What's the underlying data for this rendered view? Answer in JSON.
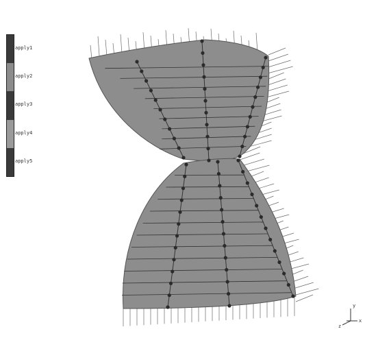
{
  "legend": {
    "items": [
      {
        "label": "apply1",
        "color": "#3a3a3a"
      },
      {
        "label": "apply2",
        "color": "#8c8c8c"
      },
      {
        "label": "apply3",
        "color": "#3a3a3a"
      },
      {
        "label": "apply4",
        "color": "#9a9a9a"
      },
      {
        "label": "apply5",
        "color": "#3a3a3a"
      }
    ]
  },
  "triad": {
    "axes": [
      "x",
      "y",
      "z"
    ]
  },
  "colors": {
    "surface": "#8d8d8d",
    "mesh": "#333333",
    "node": "#2b2b2b",
    "arrow": "#6a6a6a"
  }
}
